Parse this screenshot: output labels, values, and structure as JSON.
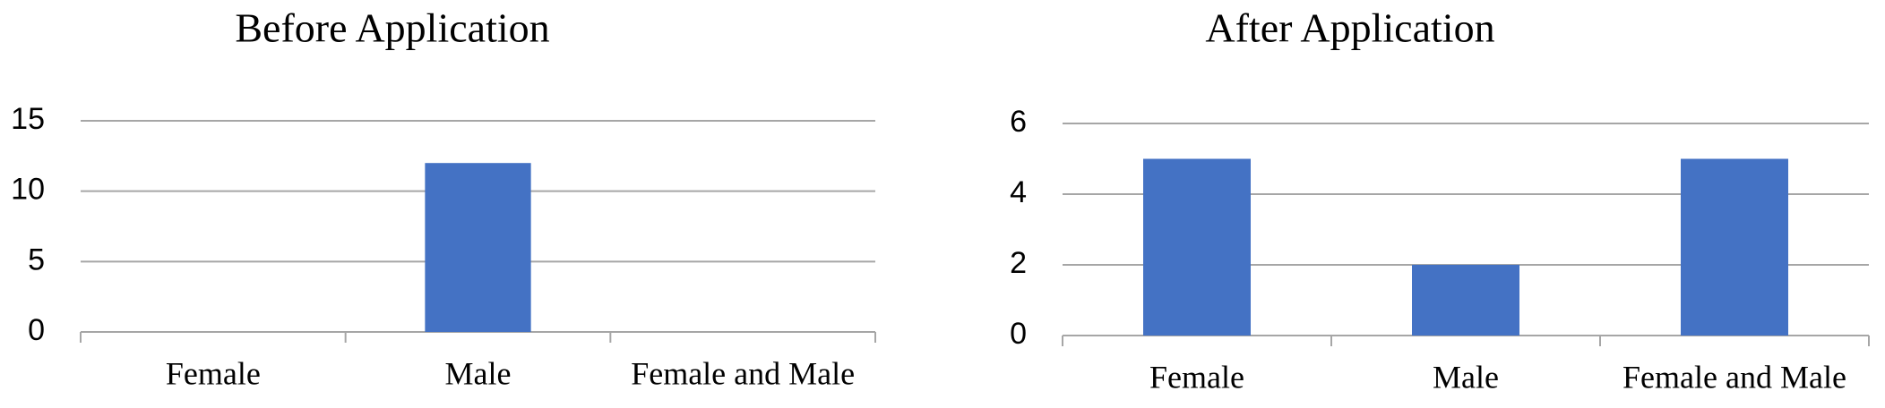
{
  "chart_data": [
    {
      "type": "bar",
      "title": "Before Application",
      "categories": [
        "Female",
        "Male",
        "Female and Male"
      ],
      "values": [
        0,
        12,
        0
      ],
      "color": "#4472c4",
      "ylim": [
        0,
        15
      ],
      "yticks": [
        0,
        5,
        10,
        15
      ],
      "grid": true
    },
    {
      "type": "bar",
      "title": "After Application",
      "categories": [
        "Female",
        "Male",
        "Female and Male"
      ],
      "values": [
        5,
        2,
        5
      ],
      "color": "#4472c4",
      "ylim": [
        0,
        6
      ],
      "yticks": [
        0,
        2,
        4,
        6
      ],
      "grid": true
    }
  ]
}
